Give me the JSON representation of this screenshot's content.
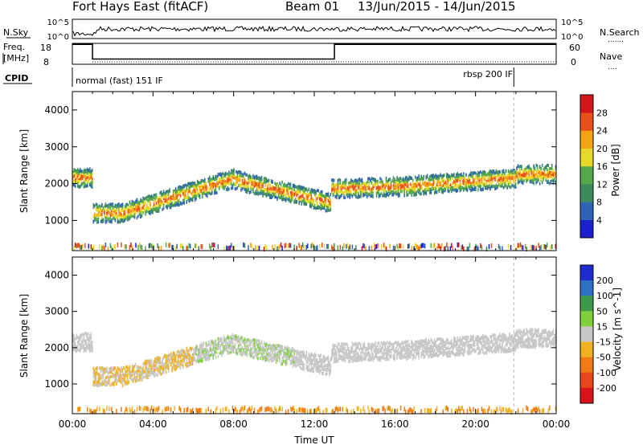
{
  "header": {
    "title": "Fort Hays East (fitACF)",
    "beam": "Beam 01",
    "date_range": "13/Jun/2015 - 14/Jun/2015"
  },
  "chart_data": [
    {
      "type": "line",
      "panel": "noise",
      "left_label": "N.Sky",
      "right_label": "N.Search",
      "right_legend": ".......",
      "left_ticks": [
        "10^5",
        "10^0"
      ],
      "right_ticks": [
        "10^5",
        "10^0"
      ],
      "log_scale": true,
      "ylim": [
        1,
        100000
      ]
    },
    {
      "type": "line",
      "panel": "frequency",
      "left_label_line1": "Freq.",
      "left_label_line2": "[MHz]",
      "right_label": "Nave",
      "right_legend": "....",
      "left_ticks": [
        "18",
        "8"
      ],
      "right_ticks": [
        "60",
        "0"
      ],
      "ylim_left": [
        8,
        18
      ],
      "ylim_right": [
        0,
        60
      ],
      "freq_steps": [
        {
          "t": 0.0,
          "mhz": 17.5
        },
        {
          "t": 1.0,
          "mhz": 10.5
        },
        {
          "t": 13.0,
          "mhz": 17.5
        },
        {
          "t": 24.0,
          "mhz": 17.5
        }
      ],
      "nave_level": 7
    },
    {
      "type": "table",
      "panel": "cpid",
      "label": "CPID",
      "modes": [
        {
          "start": 1.0,
          "end": 21.9,
          "text": "normal (fast) 151 IF",
          "align": "left"
        },
        {
          "start": 21.9,
          "end": 24.0,
          "text": "rbsp 200 IF",
          "align": "right"
        }
      ]
    },
    {
      "type": "heatmap",
      "panel": "power",
      "ylabel": "Slant Range [km]",
      "colorbar_label": "Power [dB]",
      "ylim": [
        180,
        4500
      ],
      "yticks": [
        1000,
        2000,
        3000,
        4000
      ],
      "xlim_hours": [
        0,
        24
      ],
      "colorbar_ticks": [
        "4",
        "8",
        "12",
        "16",
        "20",
        "24",
        "28"
      ],
      "colors": [
        "#1a21cc",
        "#2e63b8",
        "#3c8a5e",
        "#54a84a",
        "#e7d92c",
        "#f2a414",
        "#e8501a",
        "#d4161a"
      ]
    },
    {
      "type": "heatmap",
      "panel": "velocity",
      "ylabel": "Slant Range [km]",
      "colorbar_label": "Velocity [m s^-1]",
      "ylim": [
        180,
        4500
      ],
      "yticks": [
        1000,
        2000,
        3000,
        4000
      ],
      "xlim_hours": [
        0,
        24
      ],
      "xticks": [
        "00:00",
        "04:00",
        "08:00",
        "12:00",
        "16:00",
        "20:00",
        "00:00"
      ],
      "xlabel": "Time UT",
      "colorbar_ticks": [
        "200",
        "100",
        "50",
        "15",
        "-15",
        "-50",
        "-100",
        "-200"
      ],
      "colors": [
        "#1f2ccc",
        "#2f6fc4",
        "#3c9a4a",
        "#7fd03a",
        "#c8c8c8",
        "#f0b223",
        "#f07a14",
        "#e6461c",
        "#d8141a"
      ]
    }
  ]
}
